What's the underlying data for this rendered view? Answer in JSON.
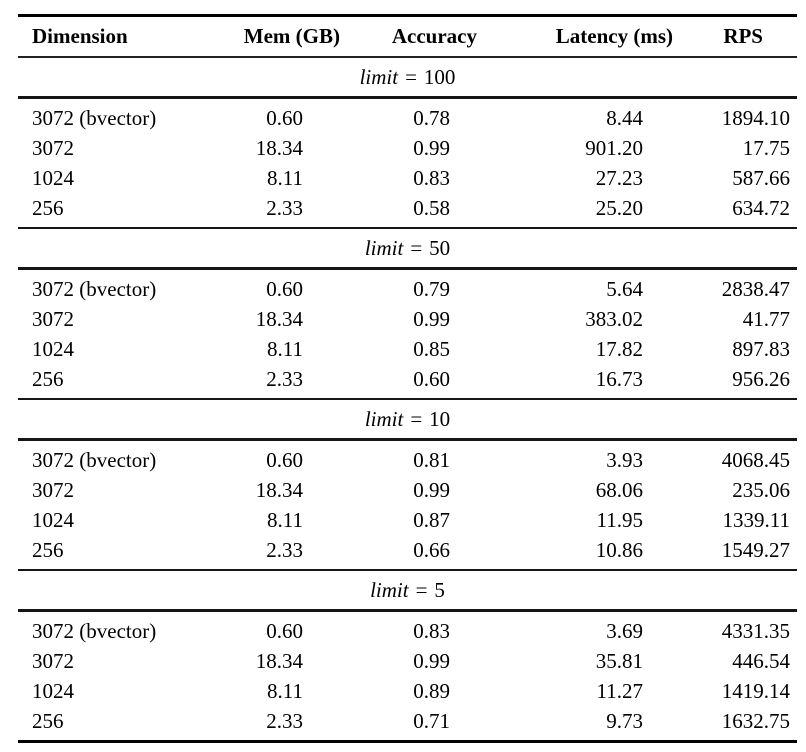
{
  "page": {
    "background": "#ffffff",
    "text_color": "#000000",
    "rule_color": "#000000"
  },
  "table": {
    "equals": "=",
    "columns": [
      {
        "label": "Dimension"
      },
      {
        "label": "Mem (GB)"
      },
      {
        "label": "Accuracy"
      },
      {
        "label": "Latency (ms)"
      },
      {
        "label": "RPS"
      }
    ],
    "sections": [
      {
        "var": "limit",
        "value": "100",
        "rows": [
          {
            "dimension": "3072 (bvector)",
            "mem_gb": "0.60",
            "accuracy": "0.78",
            "latency_ms": "8.44",
            "rps": "1894.10"
          },
          {
            "dimension": "3072",
            "mem_gb": "18.34",
            "accuracy": "0.99",
            "latency_ms": "901.20",
            "rps": "17.75"
          },
          {
            "dimension": "1024",
            "mem_gb": "8.11",
            "accuracy": "0.83",
            "latency_ms": "27.23",
            "rps": "587.66"
          },
          {
            "dimension": "256",
            "mem_gb": "2.33",
            "accuracy": "0.58",
            "latency_ms": "25.20",
            "rps": "634.72"
          }
        ]
      },
      {
        "var": "limit",
        "value": "50",
        "rows": [
          {
            "dimension": "3072 (bvector)",
            "mem_gb": "0.60",
            "accuracy": "0.79",
            "latency_ms": "5.64",
            "rps": "2838.47"
          },
          {
            "dimension": "3072",
            "mem_gb": "18.34",
            "accuracy": "0.99",
            "latency_ms": "383.02",
            "rps": "41.77"
          },
          {
            "dimension": "1024",
            "mem_gb": "8.11",
            "accuracy": "0.85",
            "latency_ms": "17.82",
            "rps": "897.83"
          },
          {
            "dimension": "256",
            "mem_gb": "2.33",
            "accuracy": "0.60",
            "latency_ms": "16.73",
            "rps": "956.26"
          }
        ]
      },
      {
        "var": "limit",
        "value": "10",
        "rows": [
          {
            "dimension": "3072 (bvector)",
            "mem_gb": "0.60",
            "accuracy": "0.81",
            "latency_ms": "3.93",
            "rps": "4068.45"
          },
          {
            "dimension": "3072",
            "mem_gb": "18.34",
            "accuracy": "0.99",
            "latency_ms": "68.06",
            "rps": "235.06"
          },
          {
            "dimension": "1024",
            "mem_gb": "8.11",
            "accuracy": "0.87",
            "latency_ms": "11.95",
            "rps": "1339.11"
          },
          {
            "dimension": "256",
            "mem_gb": "2.33",
            "accuracy": "0.66",
            "latency_ms": "10.86",
            "rps": "1549.27"
          }
        ]
      },
      {
        "var": "limit",
        "value": "5",
        "rows": [
          {
            "dimension": "3072 (bvector)",
            "mem_gb": "0.60",
            "accuracy": "0.83",
            "latency_ms": "3.69",
            "rps": "4331.35"
          },
          {
            "dimension": "3072",
            "mem_gb": "18.34",
            "accuracy": "0.99",
            "latency_ms": "35.81",
            "rps": "446.54"
          },
          {
            "dimension": "1024",
            "mem_gb": "8.11",
            "accuracy": "0.89",
            "latency_ms": "11.27",
            "rps": "1419.14"
          },
          {
            "dimension": "256",
            "mem_gb": "2.33",
            "accuracy": "0.71",
            "latency_ms": "9.73",
            "rps": "1632.75"
          }
        ]
      }
    ]
  }
}
